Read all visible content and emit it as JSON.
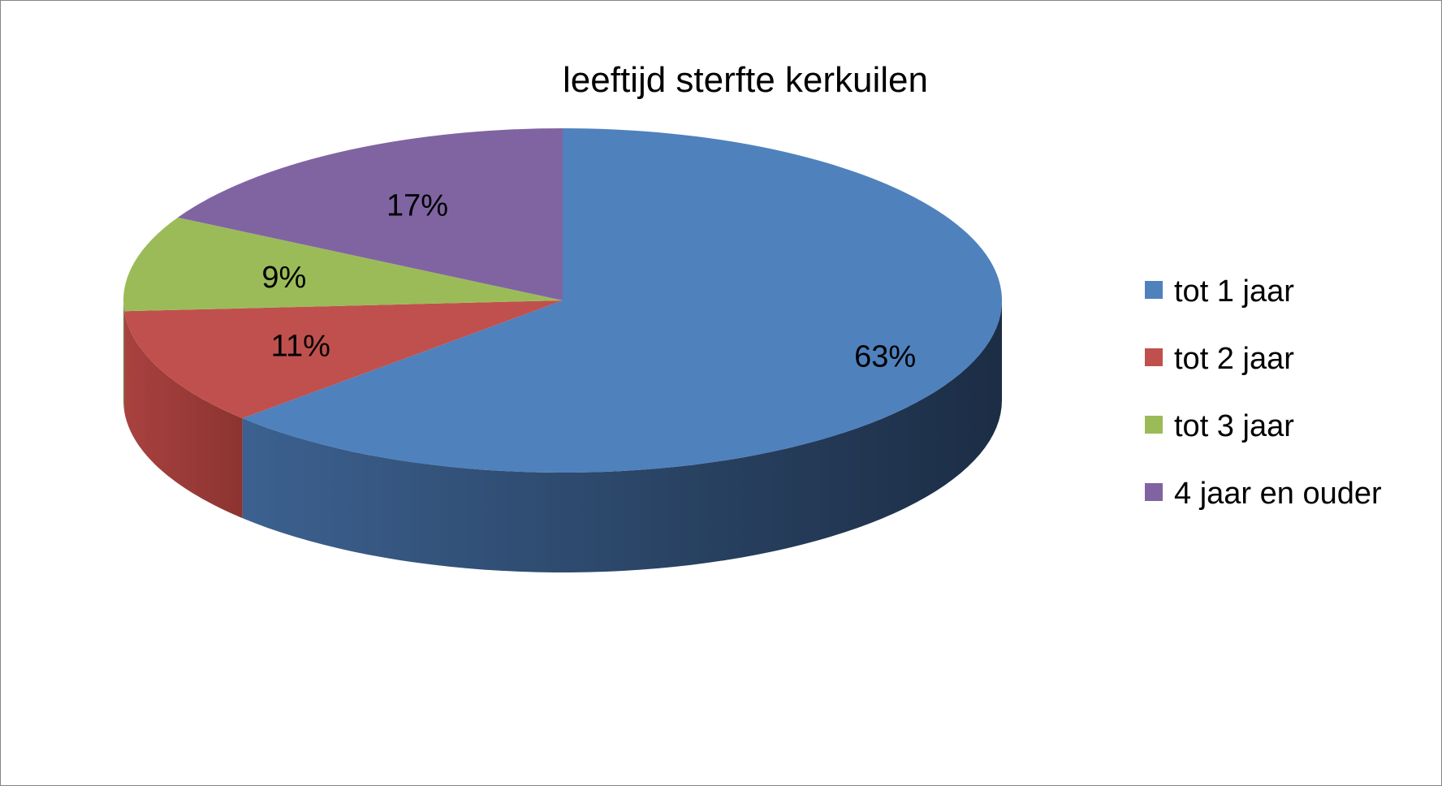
{
  "chart_data": {
    "type": "pie",
    "title": "leeftijd sterfte kerkuilen",
    "three_d": true,
    "categories": [
      "tot 1 jaar",
      "tot 2 jaar",
      "tot 3 jaar",
      "4 jaar en ouder"
    ],
    "values": [
      63,
      11,
      9,
      17
    ],
    "value_labels": [
      "63%",
      "11%",
      "9%",
      "17%"
    ],
    "colors": [
      "#4F81BD",
      "#C0504D",
      "#9BBB59",
      "#8064A2"
    ],
    "legend_position": "right",
    "start_angle_deg": 0,
    "direction": "clockwise"
  }
}
